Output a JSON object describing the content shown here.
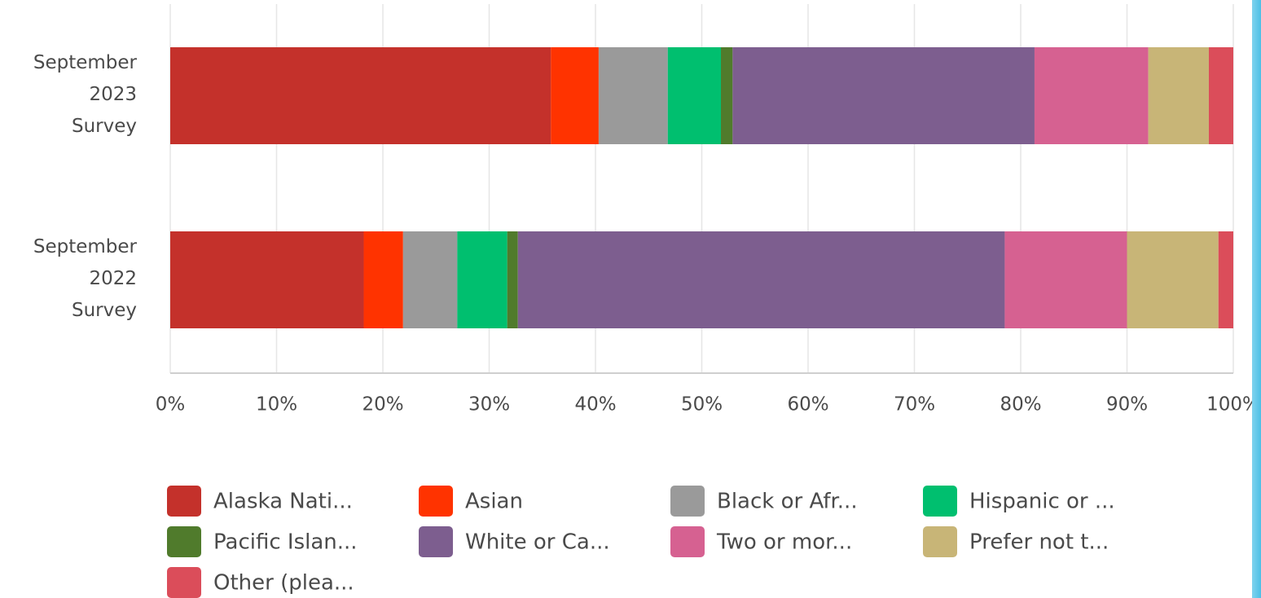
{
  "chart_data": {
    "type": "stacked-bar-horizontal",
    "categories": [
      "September 2023 Survey",
      "September 2022 Survey"
    ],
    "series": [
      {
        "name": "Alaska Nati...",
        "color": "#c4312b",
        "values": [
          35.8,
          18.2
        ]
      },
      {
        "name": "Asian",
        "color": "#ff3300",
        "values": [
          4.5,
          3.7
        ]
      },
      {
        "name": "Black or Afr...",
        "color": "#9a9a9a",
        "values": [
          6.5,
          5.1
        ]
      },
      {
        "name": "Hispanic or ...",
        "color": "#00bf6f",
        "values": [
          5.0,
          4.7
        ]
      },
      {
        "name": "Pacific Islan...",
        "color": "#507b2c",
        "values": [
          1.1,
          1.0
        ]
      },
      {
        "name": "White or Ca...",
        "color": "#7d5e8f",
        "values": [
          28.4,
          45.8
        ]
      },
      {
        "name": "Two or mor...",
        "color": "#d66191",
        "values": [
          10.7,
          11.5
        ]
      },
      {
        "name": "Prefer not t...",
        "color": "#c8b577",
        "values": [
          5.7,
          8.6
        ]
      },
      {
        "name": "Other (plea...",
        "color": "#db4d5a",
        "values": [
          2.3,
          1.4
        ]
      }
    ],
    "xlim": [
      0,
      100
    ],
    "xticks": [
      {
        "value": 0,
        "label": "0%"
      },
      {
        "value": 10,
        "label": "10%"
      },
      {
        "value": 20,
        "label": "20%"
      },
      {
        "value": 30,
        "label": "30%"
      },
      {
        "value": 40,
        "label": "40%"
      },
      {
        "value": 50,
        "label": "50%"
      },
      {
        "value": 60,
        "label": "60%"
      },
      {
        "value": 70,
        "label": "70%"
      },
      {
        "value": 80,
        "label": "80%"
      },
      {
        "value": 90,
        "label": "90%"
      },
      {
        "value": 100,
        "label": "100%"
      }
    ],
    "grid": true,
    "legend": "bottom"
  }
}
